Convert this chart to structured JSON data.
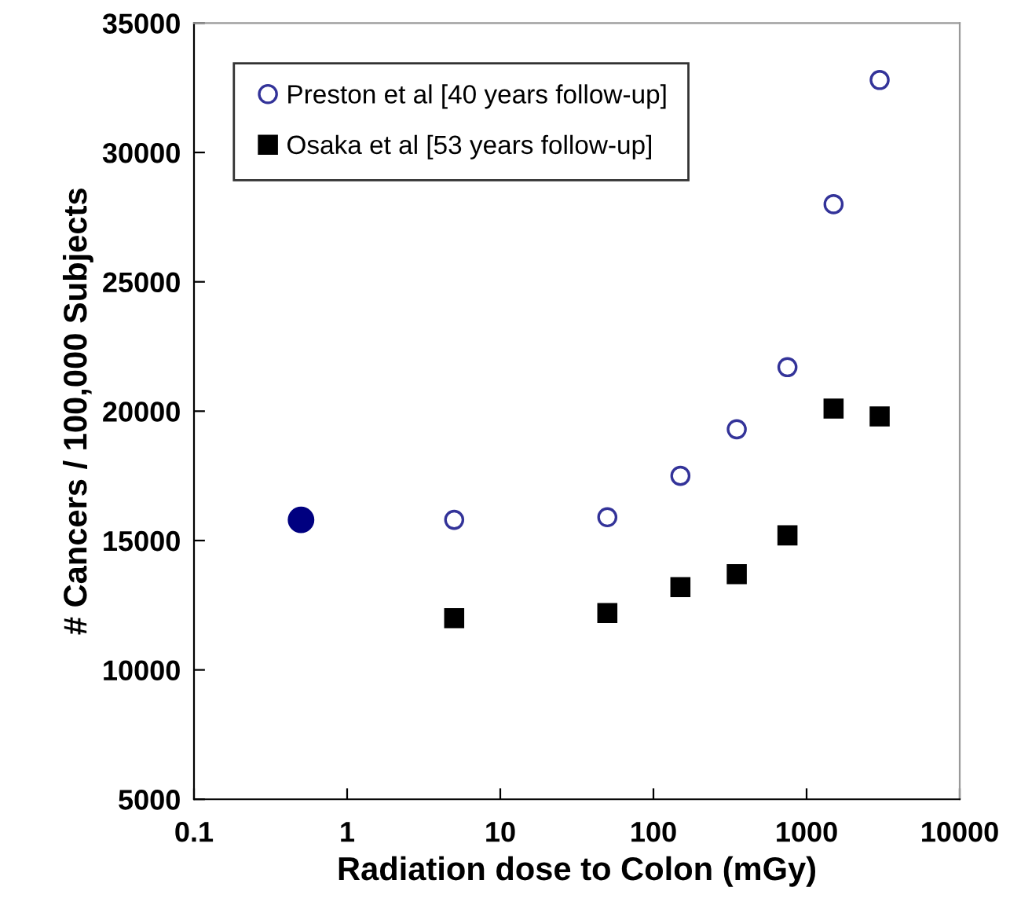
{
  "chart_data": {
    "type": "scatter",
    "xlabel": "Radiation dose to Colon (mGy)",
    "ylabel": "# Cancers / 100,000 Subjects",
    "log": "x",
    "xlim": [
      0.1,
      10000
    ],
    "xticks": [
      0.1,
      1,
      10,
      100,
      1000,
      10000
    ],
    "ylim": [
      5000,
      35000
    ],
    "yticks": [
      5000,
      10000,
      15000,
      20000,
      25000,
      30000,
      35000
    ],
    "grid": false,
    "legend": "top left",
    "series": [
      {
        "name": "Preston et al [40 years follow-up]",
        "color": "#333399",
        "marker": "circle",
        "x": [
          5,
          50,
          150,
          350,
          750,
          1500,
          3000
        ],
        "values": [
          15800,
          15900,
          17500,
          19300,
          21700,
          28000,
          32800
        ]
      },
      {
        "name": "Osaka et al [53 years follow-up]",
        "color": "#000000",
        "marker": "square",
        "x": [
          5,
          50,
          150,
          350,
          750,
          1500,
          3000
        ],
        "values": [
          12000,
          12200,
          13200,
          13700,
          15200,
          20100,
          19800
        ]
      },
      {
        "color": "#000080",
        "marker": "circle",
        "x": [
          0.5
        ],
        "values": [
          15800
        ]
      }
    ]
  }
}
